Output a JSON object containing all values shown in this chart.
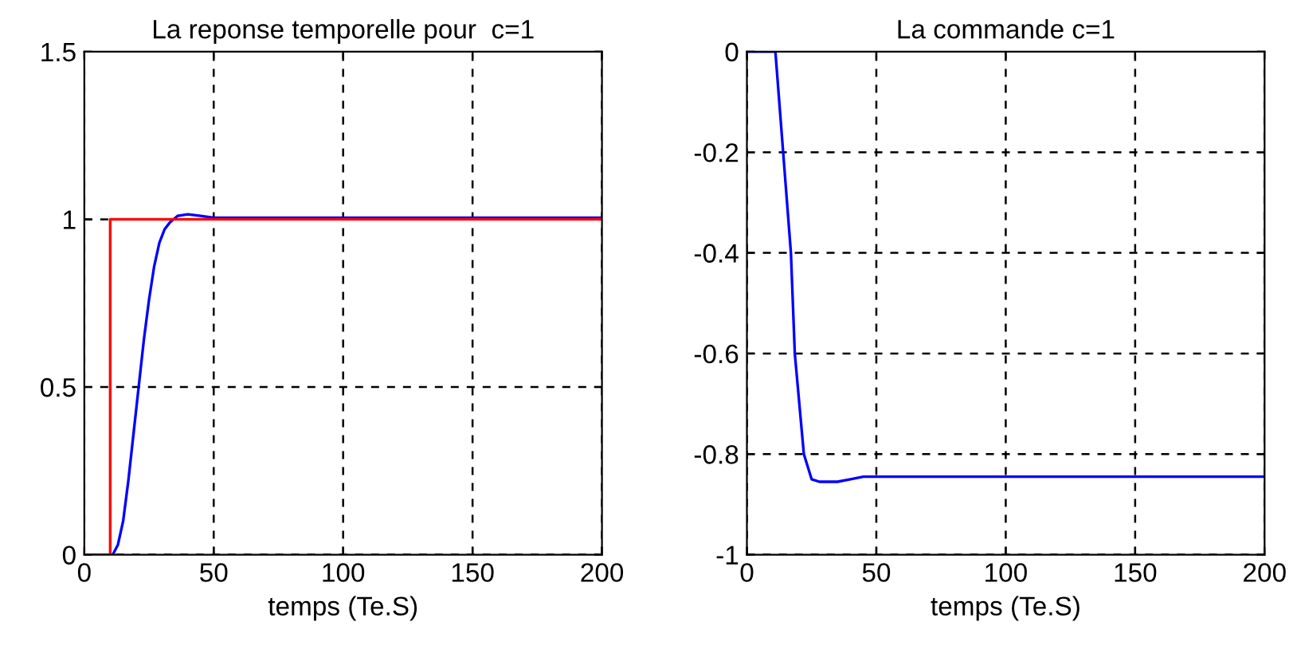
{
  "chart_data": [
    {
      "type": "line",
      "title": "La reponse temporelle pour  c=1",
      "xlabel": "temps (Te.S)",
      "xlim": [
        0,
        200
      ],
      "xticks": [
        0,
        50,
        100,
        150,
        200
      ],
      "ylim": [
        0,
        1.5
      ],
      "yticks": [
        0,
        0.5,
        1,
        1.5
      ],
      "grid": true,
      "legend": false,
      "line_style": "solid",
      "series": [
        {
          "color": "#0000ff",
          "x": [
            0,
            11,
            13,
            15,
            17,
            19,
            21,
            23,
            25,
            27,
            29,
            31,
            33,
            36,
            40,
            45,
            50,
            200
          ],
          "values": [
            0,
            0,
            0.03,
            0.1,
            0.22,
            0.36,
            0.5,
            0.64,
            0.76,
            0.86,
            0.93,
            0.97,
            0.99,
            1.01,
            1.015,
            1.01,
            1.005,
            1.005
          ]
        },
        {
          "color": "#ff0000",
          "x": [
            0,
            10,
            10,
            200
          ],
          "values": [
            0,
            0,
            1,
            1
          ]
        }
      ]
    },
    {
      "type": "line",
      "title": "La commande c=1",
      "xlabel": "temps (Te.S)",
      "xlim": [
        0,
        200
      ],
      "xticks": [
        0,
        50,
        100,
        150,
        200
      ],
      "ylim": [
        -1,
        0
      ],
      "yticks": [
        -1,
        -0.8,
        -0.6,
        -0.4,
        -0.2,
        0
      ],
      "grid": true,
      "legend": false,
      "line_style": "solid",
      "series": [
        {
          "color": "#0000ff",
          "x": [
            0,
            11,
            14,
            17,
            18.5,
            22,
            25,
            28,
            35,
            40,
            45,
            200
          ],
          "values": [
            0,
            0,
            -0.2,
            -0.4,
            -0.6,
            -0.8,
            -0.85,
            -0.855,
            -0.855,
            -0.85,
            -0.845,
            -0.845
          ]
        }
      ]
    }
  ]
}
